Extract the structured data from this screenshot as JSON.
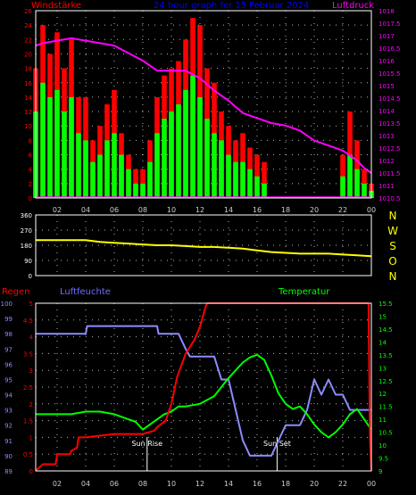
{
  "top_panel": {
    "title": "24 hour graph for 15 Februar 2024",
    "left_label": "Windstärke",
    "right_label": "Luftdruck",
    "left_ticks": [
      "0",
      "2",
      "4",
      "6",
      "8",
      "10",
      "12",
      "14",
      "16",
      "18",
      "20",
      "22",
      "24",
      "26"
    ],
    "right_ticks": [
      "1010.5",
      "1011",
      "1011.5",
      "1012",
      "1012.5",
      "1013",
      "1013.5",
      "1014",
      "1014.5",
      "1015",
      "1015.5",
      "1016",
      "1016.5",
      "1017",
      "1017.5",
      "1018"
    ]
  },
  "middle_panel": {
    "left_ticks": [
      "0",
      "90",
      "180",
      "270",
      "360"
    ],
    "right_letters": [
      "N",
      "W",
      "S",
      "O",
      "N"
    ]
  },
  "bottom_panel": {
    "rain_label": "Regen",
    "humidity_label": "Luftfeuchte",
    "temp_label": "Temperatur",
    "rain_ticks": [
      "0",
      "0.5",
      "1",
      "1.5",
      "2",
      "2.5",
      "3",
      "3.5",
      "4",
      "4.5",
      "5"
    ],
    "humidity_ticks": [
      "89",
      "90",
      "91",
      "92",
      "93",
      "94",
      "95",
      "96",
      "97",
      "98",
      "99",
      "100"
    ],
    "temp_ticks": [
      "9",
      "9.5",
      "10",
      "10.5",
      "11",
      "11.5",
      "12",
      "12.5",
      "13",
      "13.5",
      "14",
      "14.5",
      "15",
      "15.5"
    ],
    "sunrise_label": "Sun Rise",
    "sunset_label": "Sun Set"
  },
  "x_ticks": [
    "02",
    "04",
    "06",
    "08",
    "10",
    "12",
    "14",
    "16",
    "18",
    "20",
    "22",
    "00"
  ],
  "colors": {
    "wind_gust": "#ff0000",
    "wind_avg": "#00ff00",
    "pressure": "#ff00ff",
    "direction": "#ffff00",
    "rain": "#ff0000",
    "humidity": "#8c8cff",
    "temperature": "#00ff00",
    "grid": "#ffffff",
    "frame": "#ffffff"
  },
  "chart_data": [
    {
      "type": "bar",
      "title": "24 hour graph for 15 Februar 2024",
      "x_range": [
        0.5,
        24
      ],
      "ylabel": "Windstärke",
      "ylim": [
        0,
        26
      ],
      "y2label": "Luftdruck",
      "y2lim": [
        1010.5,
        1018
      ],
      "series": [
        {
          "name": "Windstärke",
          "kind": "gust",
          "x": [
            0.5,
            1,
            1.5,
            2,
            2.5,
            3,
            3.5,
            4,
            4.5,
            5,
            5.5,
            6,
            6.5,
            7,
            7.5,
            8,
            8.5,
            9,
            9.5,
            10,
            10.5,
            11,
            11.5,
            12,
            12.5,
            13,
            13.5,
            14,
            14.5,
            15,
            15.5,
            16,
            16.5,
            17,
            17.5,
            18,
            18.5,
            19,
            19.5,
            20,
            20.5,
            21,
            21.5,
            22,
            22.5,
            23,
            23.5,
            24
          ],
          "values": [
            18,
            24,
            20,
            23,
            18,
            22,
            14,
            14,
            8,
            10,
            13,
            15,
            9,
            6,
            4,
            4,
            8,
            14,
            17,
            18,
            19,
            22,
            25,
            24,
            18,
            16,
            12,
            10,
            8,
            9,
            7,
            6,
            5,
            0,
            0,
            0,
            0,
            0,
            0,
            0,
            0,
            0,
            0,
            6,
            12,
            8,
            4,
            2
          ]
        },
        {
          "name": "Windstärke",
          "kind": "average",
          "x": [
            0.5,
            1,
            1.5,
            2,
            2.5,
            3,
            3.5,
            4,
            4.5,
            5,
            5.5,
            6,
            6.5,
            7,
            7.5,
            8,
            8.5,
            9,
            9.5,
            10,
            10.5,
            11,
            11.5,
            12,
            12.5,
            13,
            13.5,
            14,
            14.5,
            15,
            15.5,
            16,
            16.5,
            17,
            17.5,
            18,
            18.5,
            19,
            19.5,
            20,
            20.5,
            21,
            21.5,
            22,
            22.5,
            23,
            23.5,
            24
          ],
          "values": [
            12,
            16,
            14,
            15,
            12,
            14,
            9,
            8,
            5,
            6,
            8,
            9,
            6,
            4,
            2,
            2,
            5,
            9,
            11,
            12,
            13,
            15,
            17,
            14,
            11,
            9,
            8,
            6,
            5,
            5,
            4,
            3,
            2,
            0,
            0,
            0,
            0,
            0,
            0,
            0,
            0,
            0,
            0,
            3,
            6,
            4,
            2,
            1
          ]
        },
        {
          "name": "Luftdruck",
          "type": "line",
          "axis": "y2",
          "x": [
            0.5,
            1,
            2,
            3,
            4,
            5,
            6,
            7,
            8,
            9,
            10,
            11,
            12,
            13,
            14,
            15,
            16,
            17,
            18,
            19,
            20,
            21,
            22,
            23,
            23.5,
            24
          ],
          "values": [
            1016.6,
            1016.7,
            1016.8,
            1016.9,
            1016.8,
            1016.7,
            1016.6,
            1016.3,
            1016.0,
            1015.6,
            1015.6,
            1015.6,
            1015.3,
            1014.8,
            1014.4,
            1013.9,
            1013.7,
            1013.5,
            1013.4,
            1013.2,
            1012.8,
            1012.6,
            1012.4,
            1012.0,
            1011.7,
            1011.5
          ]
        }
      ]
    },
    {
      "type": "line",
      "x_range": [
        0.5,
        24
      ],
      "ylim": [
        0,
        360
      ],
      "series": [
        {
          "name": "Windrichtung",
          "x": [
            0.5,
            2,
            3,
            4,
            5,
            6,
            7,
            8,
            9,
            10,
            11,
            12,
            13,
            14,
            15,
            16,
            17,
            18,
            19,
            20,
            21,
            22,
            23,
            24
          ],
          "values": [
            210,
            210,
            210,
            210,
            200,
            195,
            190,
            185,
            180,
            180,
            175,
            170,
            170,
            165,
            160,
            150,
            140,
            135,
            130,
            130,
            130,
            125,
            120,
            115
          ]
        }
      ]
    },
    {
      "type": "line",
      "x_range": [
        0.5,
        24
      ],
      "ylabel": "Regen",
      "ylim": [
        0,
        5
      ],
      "series": [
        {
          "name": "Regen",
          "x": [
            0.5,
            1,
            1.9,
            2,
            2.9,
            3,
            3.4,
            3.5,
            4,
            5,
            6,
            7,
            8,
            8.8,
            9,
            9.6,
            10,
            10.4,
            11,
            11.3,
            11.6,
            12,
            12.2,
            12.4,
            12.5,
            13,
            14,
            15,
            16,
            17,
            18,
            19,
            20,
            21,
            22,
            23,
            23.8,
            23.9,
            24
          ],
          "values": [
            0,
            0.2,
            0.2,
            0.5,
            0.5,
            0.6,
            0.7,
            1.0,
            1.0,
            1.05,
            1.1,
            1.1,
            1.1,
            1.2,
            1.3,
            1.5,
            2.0,
            2.8,
            3.5,
            3.7,
            3.9,
            4.3,
            4.6,
            4.9,
            5.0,
            5.0,
            5.0,
            5.0,
            5.0,
            5.0,
            5.0,
            5.0,
            5.0,
            5.0,
            5.0,
            5.0,
            5.0,
            1.0,
            0
          ]
        }
      ]
    },
    {
      "type": "line",
      "x_range": [
        0.5,
        24
      ],
      "ylabel": "Luftfeuchte",
      "ylim": [
        89,
        100
      ],
      "series": [
        {
          "name": "Luftfeuchte",
          "x": [
            0.5,
            4,
            4.1,
            7,
            7.1,
            9,
            9.1,
            10.5,
            11,
            11.3,
            12,
            13,
            13.5,
            14,
            14.5,
            15,
            15.5,
            16,
            17,
            17.5,
            18,
            19,
            19.5,
            20,
            20.5,
            21,
            21.5,
            22,
            22.5,
            23,
            24
          ],
          "values": [
            98,
            98,
            98.5,
            98.5,
            98.5,
            98.5,
            98,
            98,
            97,
            96.5,
            96.5,
            96.5,
            95,
            95,
            93,
            91,
            90,
            90,
            90,
            91,
            92,
            92,
            93,
            95,
            94,
            95,
            94,
            94,
            93,
            93,
            93
          ]
        }
      ]
    },
    {
      "type": "line",
      "x_range": [
        0.5,
        24
      ],
      "ylabel": "Temperatur",
      "ylim": [
        9,
        15.5
      ],
      "series": [
        {
          "name": "Temperatur",
          "x": [
            0.5,
            1,
            2,
            3,
            4,
            5,
            6,
            7,
            7.5,
            8,
            8.5,
            9,
            9.5,
            10,
            10.5,
            11,
            12,
            13,
            14,
            15,
            15.5,
            16,
            16.5,
            17,
            17.5,
            18,
            18.5,
            19,
            19.5,
            20,
            20.5,
            21,
            21.5,
            22,
            22.5,
            23,
            23.5,
            24
          ],
          "values": [
            11.2,
            11.2,
            11.2,
            11.2,
            11.3,
            11.3,
            11.2,
            11.0,
            10.9,
            10.6,
            10.8,
            11.0,
            11.2,
            11.3,
            11.5,
            11.5,
            11.6,
            11.9,
            12.6,
            13.2,
            13.4,
            13.5,
            13.3,
            12.7,
            12.0,
            11.6,
            11.4,
            11.5,
            11.2,
            10.8,
            10.5,
            10.3,
            10.5,
            10.8,
            11.2,
            11.4,
            11.0,
            10.6
          ]
        }
      ]
    }
  ]
}
